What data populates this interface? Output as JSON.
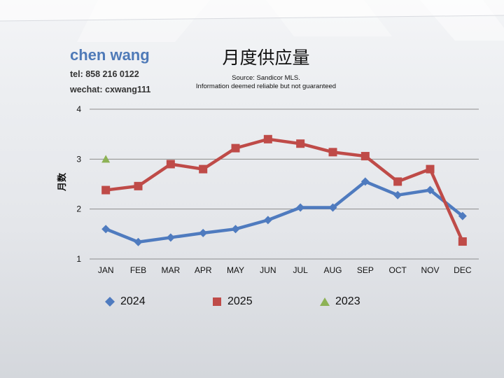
{
  "header": {
    "agent_name": "chen wang",
    "tel": "tel: 858 216 0122",
    "wechat": "wechat: cxwang111"
  },
  "title": "月度供应量",
  "source_line1": "Source: Sandicor MLS.",
  "source_line2": "Information deemed reliable but not guaranteed",
  "colors": {
    "series_2024": "#4f7bbf",
    "series_2025": "#bf4b48",
    "series_2023": "#8db255",
    "grid": "#8c8c8c",
    "agent_name": "#4f7ab8"
  },
  "chart_data": {
    "type": "line",
    "title": "月度供应量",
    "ylabel": "月数",
    "xlabel": "",
    "categories": [
      "JAN",
      "FEB",
      "MAR",
      "APR",
      "MAY",
      "JUN",
      "JUL",
      "AUG",
      "SEP",
      "OCT",
      "NOV",
      "DEC"
    ],
    "ylim": [
      1,
      4
    ],
    "yticks": [
      1,
      2,
      3,
      4
    ],
    "grid": true,
    "legend_position": "bottom",
    "series": [
      {
        "name": "2024",
        "marker": "diamond",
        "color": "#4f7bbf",
        "values": [
          1.6,
          1.34,
          1.43,
          1.52,
          1.6,
          1.78,
          2.03,
          2.03,
          2.55,
          2.28,
          2.38,
          1.86
        ]
      },
      {
        "name": "2025",
        "marker": "square",
        "color": "#bf4b48",
        "values": [
          2.38,
          2.46,
          2.9,
          2.8,
          3.22,
          3.4,
          3.31,
          3.14,
          3.06,
          2.55,
          2.8,
          1.35
        ]
      },
      {
        "name": "2023",
        "marker": "triangle",
        "color": "#8db255",
        "values": [
          3.0,
          null,
          null,
          null,
          null,
          null,
          null,
          null,
          null,
          null,
          null,
          null
        ]
      }
    ]
  }
}
